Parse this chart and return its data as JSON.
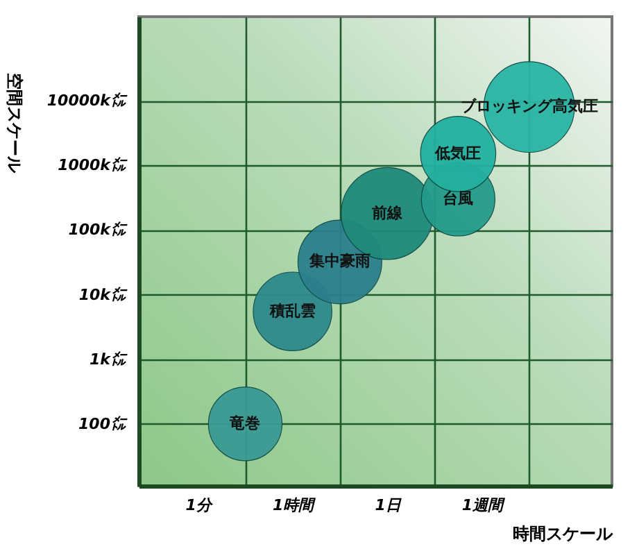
{
  "chart_data": {
    "type": "bubble",
    "xlabel": "時間スケール",
    "ylabel": "空間スケール",
    "log": "y",
    "grid": true,
    "categories": [
      null,
      null,
      "1分",
      null,
      null,
      null,
      "1時間",
      null,
      null,
      null,
      "1日",
      null,
      null,
      null,
      "1週間",
      null,
      null,
      null,
      null,
      null
    ],
    "ylim": [
      11,
      200000000
    ],
    "yticks": [
      {
        "value": 100,
        "label": "100㍍"
      },
      {
        "value": 1000,
        "label": "1k㍍"
      },
      {
        "value": 10000,
        "label": "10k㍍"
      },
      {
        "value": 100000,
        "label": "100k㍍"
      },
      {
        "value": 1000000,
        "label": "1000k㍍"
      },
      {
        "value": 10000000,
        "label": "10000k㍍"
      }
    ],
    "series": [
      {
        "name": "竜巻",
        "color": "#3a9a94",
        "values": [
          null,
          null,
          null,
          null,
          100,
          null,
          null,
          null,
          null,
          null,
          null,
          null,
          null,
          null,
          null,
          null,
          null,
          null,
          null,
          null
        ],
        "sizes": [
          null,
          null,
          null,
          null,
          0.64,
          null,
          null,
          null,
          null,
          null,
          null,
          null,
          null,
          null,
          null,
          null,
          null,
          null,
          null,
          null
        ]
      },
      {
        "name": "積乱雲",
        "color": "#2e8a8c",
        "values": [
          null,
          null,
          null,
          null,
          null,
          null,
          5500,
          null,
          null,
          null,
          null,
          null,
          null,
          null,
          null,
          null,
          null,
          null,
          null,
          null
        ],
        "sizes": [
          null,
          null,
          null,
          null,
          null,
          null,
          0.73,
          null,
          null,
          null,
          null,
          null,
          null,
          null,
          null,
          null,
          null,
          null,
          null,
          null
        ]
      },
      {
        "name": "集中豪雨",
        "color": "#2b7f8c",
        "values": [
          null,
          null,
          null,
          null,
          null,
          null,
          null,
          null,
          32000,
          null,
          null,
          null,
          null,
          null,
          null,
          null,
          null,
          null,
          null,
          null
        ],
        "sizes": [
          null,
          null,
          null,
          null,
          null,
          null,
          null,
          null,
          0.83,
          null,
          null,
          null,
          null,
          null,
          null,
          null,
          null,
          null,
          null,
          null
        ]
      },
      {
        "name": "前線",
        "color": "#1f8a7a",
        "values": [
          null,
          null,
          null,
          null,
          null,
          null,
          null,
          null,
          null,
          null,
          180000,
          null,
          null,
          null,
          null,
          null,
          null,
          null,
          null,
          null
        ],
        "sizes": [
          null,
          null,
          null,
          null,
          null,
          null,
          null,
          null,
          null,
          null,
          1,
          null,
          null,
          null,
          null,
          null,
          null,
          null,
          null,
          null
        ]
      },
      {
        "name": "台風",
        "color": "#239b8a",
        "values": [
          null,
          null,
          null,
          null,
          null,
          null,
          null,
          null,
          null,
          null,
          null,
          null,
          null,
          300000,
          null,
          null,
          null,
          null,
          null,
          null
        ],
        "sizes": [
          null,
          null,
          null,
          null,
          null,
          null,
          null,
          null,
          null,
          null,
          null,
          null,
          null,
          0.64,
          null,
          null,
          null,
          null,
          null,
          null
        ]
      },
      {
        "name": "低気圧",
        "color": "#22b0a0",
        "values": [
          null,
          null,
          null,
          null,
          null,
          null,
          null,
          null,
          null,
          null,
          null,
          null,
          null,
          1500000,
          null,
          null,
          null,
          null,
          null,
          null
        ],
        "sizes": [
          null,
          null,
          null,
          null,
          null,
          null,
          null,
          null,
          null,
          null,
          null,
          null,
          null,
          0.67,
          null,
          null,
          null,
          null,
          null,
          null
        ]
      },
      {
        "name": "ブロッキング高気圧",
        "color": "#2ab5a5",
        "values": [
          null,
          null,
          null,
          null,
          null,
          null,
          null,
          null,
          null,
          null,
          null,
          null,
          null,
          null,
          null,
          null,
          8000000,
          null,
          null,
          null
        ],
        "sizes": [
          null,
          null,
          null,
          null,
          null,
          null,
          null,
          null,
          null,
          null,
          null,
          null,
          null,
          null,
          null,
          null,
          0.97,
          null,
          null,
          null
        ]
      }
    ]
  }
}
